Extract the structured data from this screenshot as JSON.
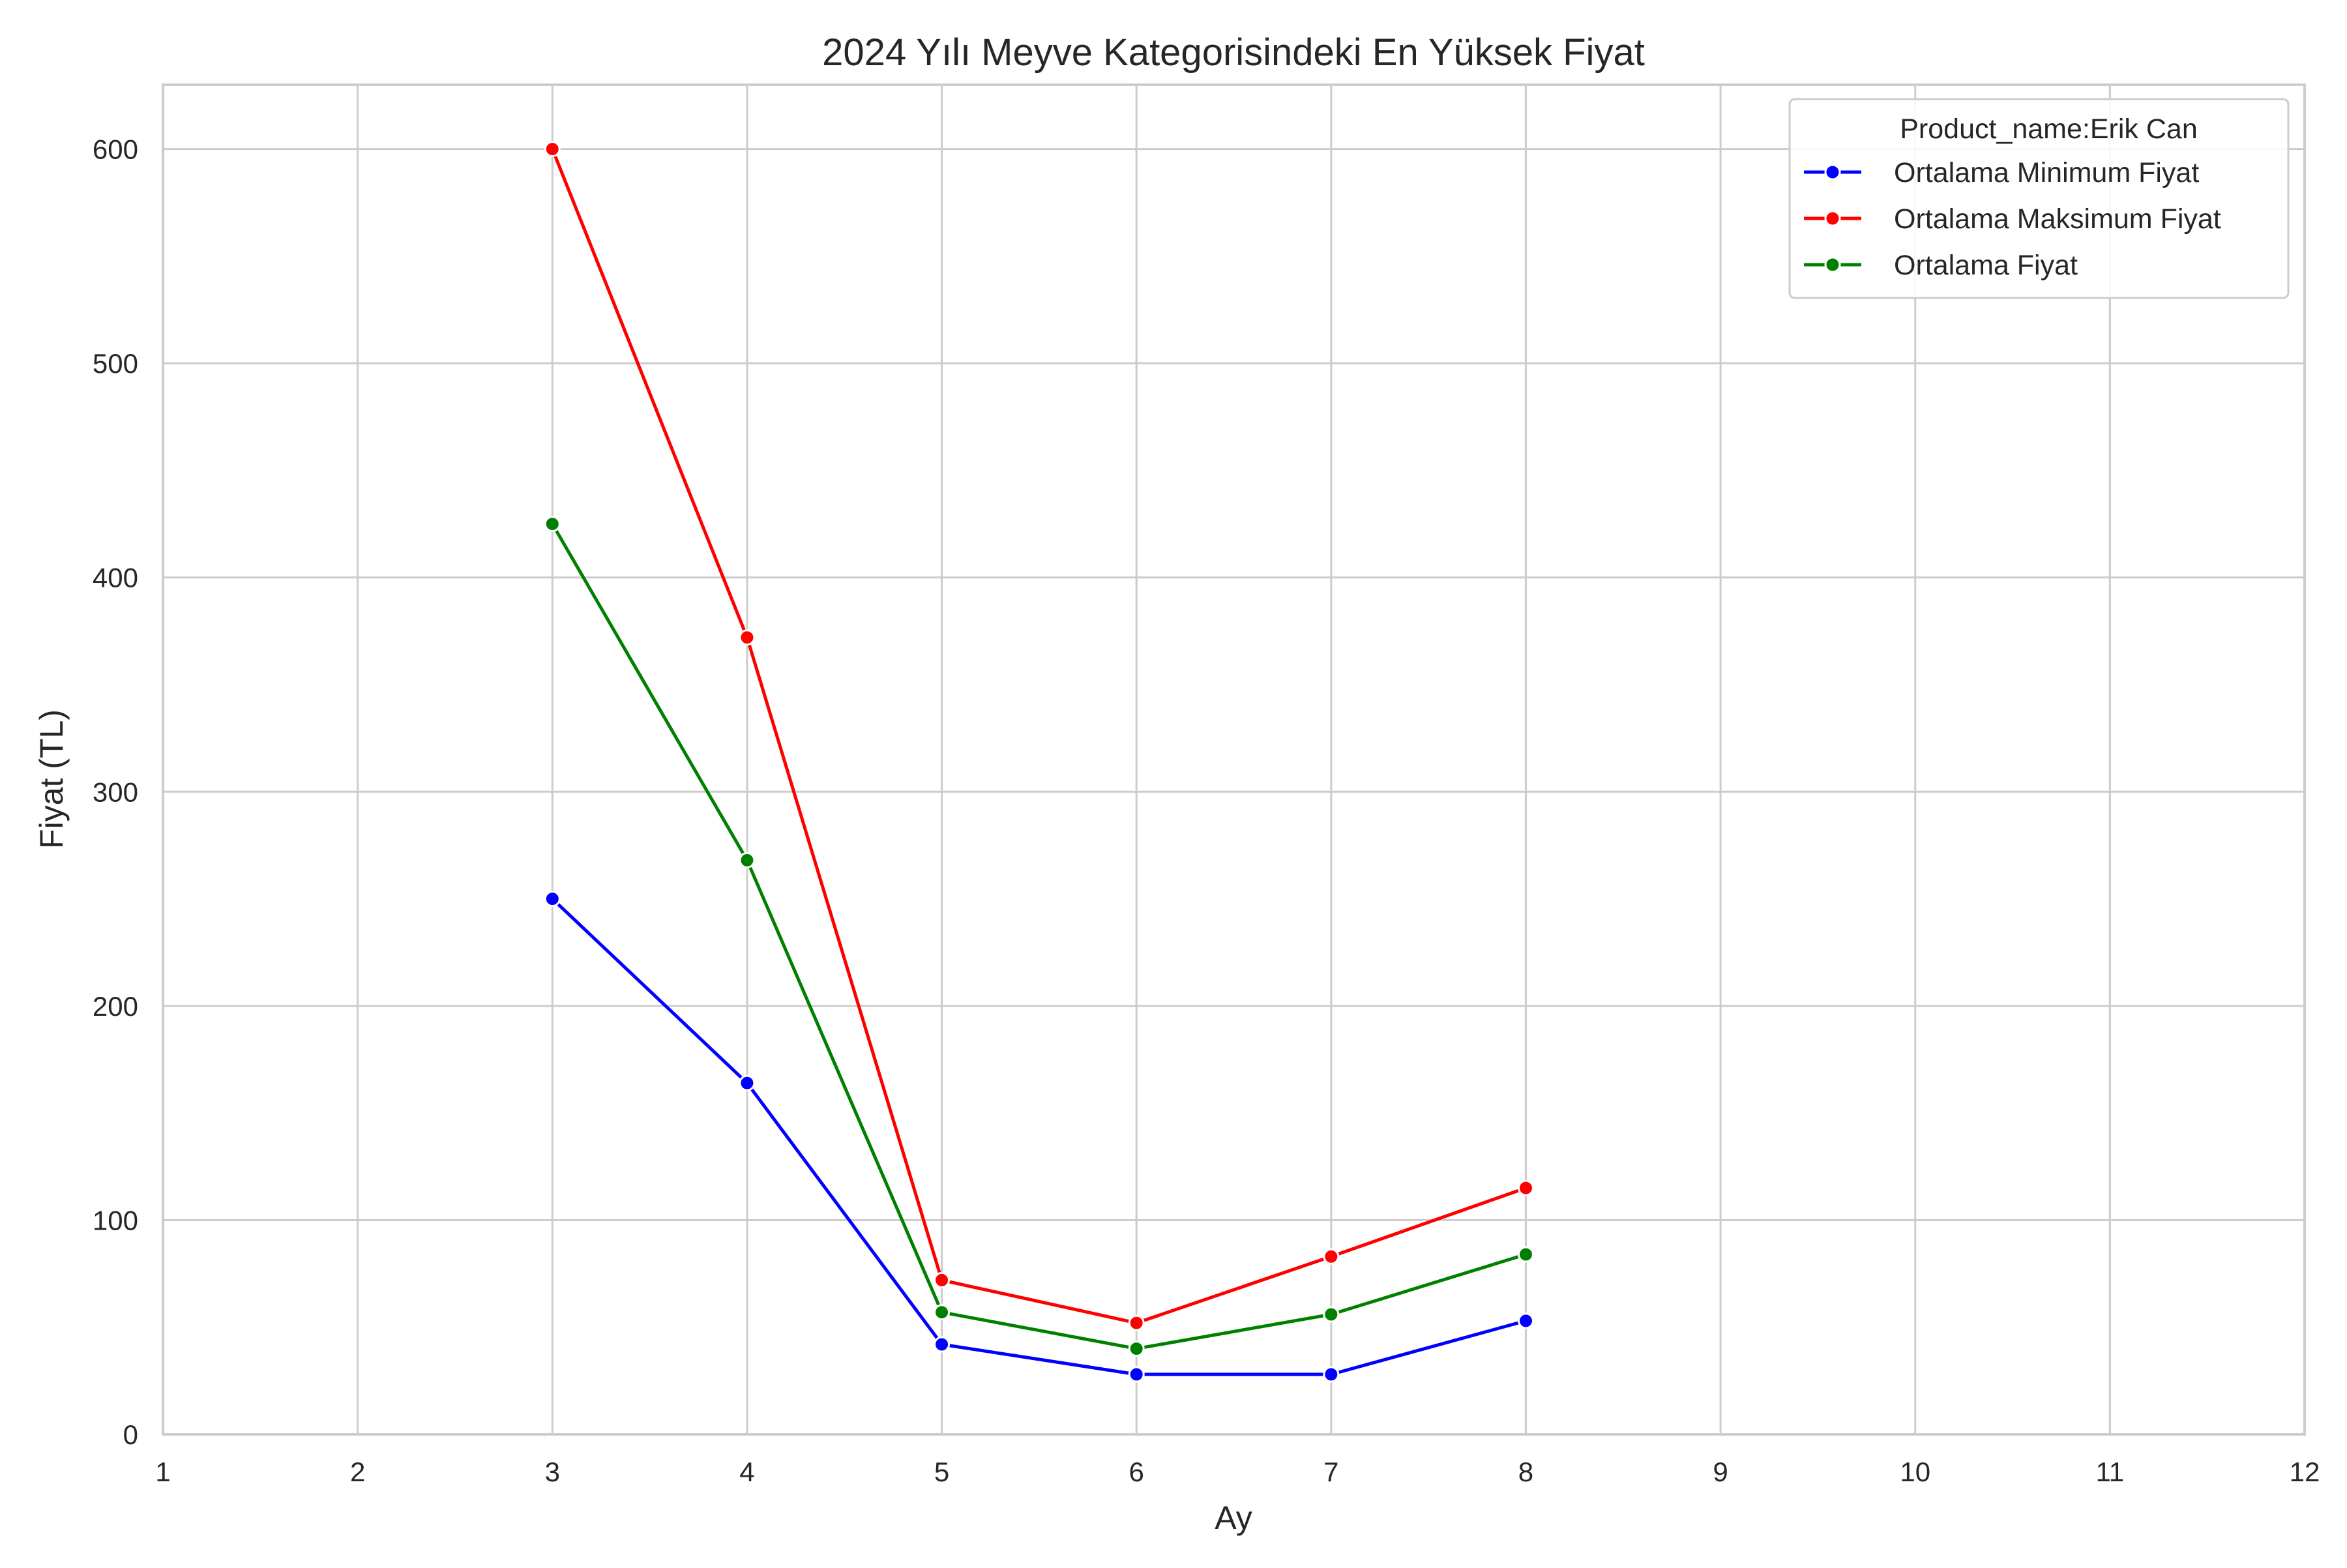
{
  "chart_data": {
    "type": "line",
    "title": "2024 Yılı Meyve Kategorisindeki En Yüksek Fiyat",
    "xlabel": "Ay",
    "ylabel": "Fiyat (TL)",
    "xlim": [
      1,
      12
    ],
    "ylim": [
      0,
      630
    ],
    "x_ticks": [
      1,
      2,
      3,
      4,
      5,
      6,
      7,
      8,
      9,
      10,
      11,
      12
    ],
    "y_ticks": [
      0,
      100,
      200,
      300,
      400,
      500,
      600
    ],
    "grid": true,
    "legend": {
      "title": "Product_name:Erik Can",
      "placement": "top-right"
    },
    "series": [
      {
        "name": "Ortalama Minimum Fiyat",
        "color": "#0000ff",
        "x": [
          3,
          4,
          5,
          6,
          7,
          8
        ],
        "values": [
          250,
          164,
          42,
          28,
          28,
          53
        ]
      },
      {
        "name": "Ortalama Maksimum Fiyat",
        "color": "#ff0000",
        "x": [
          3,
          4,
          5,
          6,
          7,
          8
        ],
        "values": [
          600,
          372,
          72,
          52,
          83,
          115
        ]
      },
      {
        "name": "Ortalama Fiyat",
        "color": "#008000",
        "x": [
          3,
          4,
          5,
          6,
          7,
          8
        ],
        "values": [
          425,
          268,
          57,
          40,
          56,
          84
        ]
      }
    ]
  }
}
